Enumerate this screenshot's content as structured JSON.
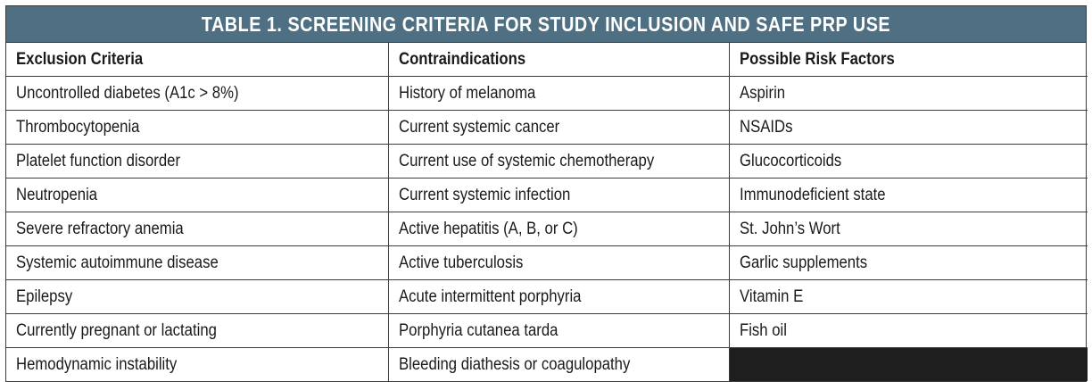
{
  "title": "TABLE 1. SCREENING CRITERIA FOR STUDY INCLUSION AND SAFE PRP USE",
  "columns": [
    "Exclusion Criteria",
    "Contraindications",
    "Possible Risk Factors"
  ],
  "rows": [
    [
      "Uncontrolled diabetes (A1c > 8%)",
      "History of melanoma",
      "Aspirin"
    ],
    [
      "Thrombocytopenia",
      "Current systemic cancer",
      "NSAIDs"
    ],
    [
      "Platelet function disorder",
      "Current use of systemic chemotherapy",
      "Glucocorticoids"
    ],
    [
      "Neutropenia",
      "Current systemic infection",
      "Immunodeficient state"
    ],
    [
      "Severe refractory anemia",
      "Active hepatitis (A, B, or C)",
      "St. John’s Wort"
    ],
    [
      "Systemic autoimmune disease",
      "Active tuberculosis",
      "Garlic supplements"
    ],
    [
      "Epilepsy",
      "Acute intermittent porphyria",
      "Vitamin E"
    ],
    [
      "Currently pregnant or lactating",
      "Porphyria cutanea tarda",
      "Fish oil"
    ],
    [
      "Hemodynamic instability",
      "Bleeding diathesis or coagulopathy",
      ""
    ]
  ],
  "colors": {
    "title_bg": "#4f6f83",
    "title_fg": "#ffffff",
    "border": "#3d3d3d",
    "empty_cell": "#1e1e1e"
  }
}
